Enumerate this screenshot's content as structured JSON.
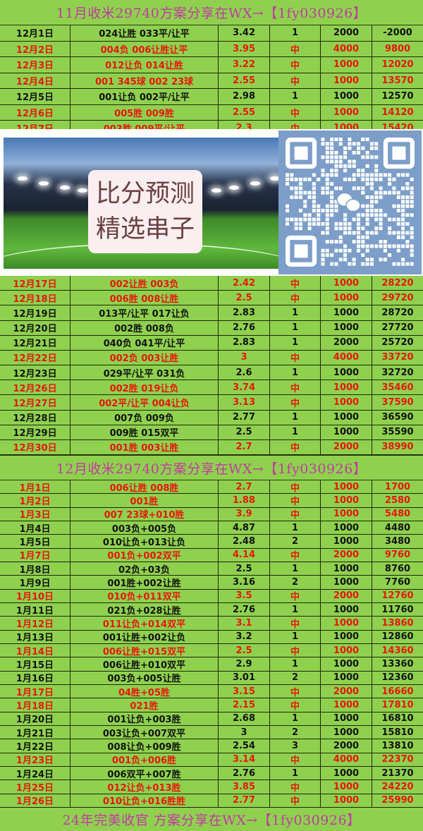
{
  "headers": {
    "top": "11月收米29740方案分享在WX→【1fy030926】",
    "middle": "12月收米29740方案分享在WX→【1fy030926】",
    "bottom": "24年完美收官 方案分享在WX→【1fy030926】"
  },
  "colors": {
    "background": "#8fd14f",
    "hit_text": "#e8160c",
    "header_text": "#c13ba0",
    "qr_background": "#7c9ec8"
  },
  "banner": {
    "line1": "比分预测",
    "line2": "精选串子",
    "qr_icon": "wechat-qr-code"
  },
  "section1": [
    [
      "12月1日",
      "024让胜 033平/让平",
      "3.42",
      "1",
      "2000",
      "-2000"
    ],
    [
      "12月2日",
      "004负 006让胜让平",
      "3.95",
      "中",
      "4000",
      "9800"
    ],
    [
      "12月3日",
      "012让负 014让胜",
      "3.22",
      "中",
      "1000",
      "12020"
    ],
    [
      "12月4日",
      "001 345球 002 23球",
      "2.55",
      "中",
      "1000",
      "13570"
    ],
    [
      "12月5日",
      "001让负 002平/让平",
      "2.98",
      "1",
      "1000",
      "12570"
    ],
    [
      "12月6日",
      "005胜 009胜",
      "2.55",
      "中",
      "1000",
      "14120"
    ],
    [
      "12月7日",
      "003胜 009平/让平",
      "2.3",
      "中",
      "1000",
      "15420"
    ]
  ],
  "section2": [
    [
      "12月17日",
      "002让胜 003负",
      "2.42",
      "中",
      "1000",
      "28220"
    ],
    [
      "12月18日",
      "006胜 008让胜",
      "2.5",
      "中",
      "1000",
      "29720"
    ],
    [
      "12月19日",
      "013平/让平 017让负",
      "2.83",
      "1",
      "1000",
      "28720"
    ],
    [
      "12月20日",
      "002胜 008负",
      "2.76",
      "1",
      "1000",
      "27720"
    ],
    [
      "12月21日",
      "040负 041平/让平",
      "2.83",
      "1",
      "2000",
      "25720"
    ],
    [
      "12月22日",
      "002负 003让胜",
      "3",
      "中",
      "4000",
      "33720"
    ],
    [
      "12月23日",
      "029平/让平 031负",
      "2.6",
      "1",
      "1000",
      "32720"
    ],
    [
      "12月26日",
      "002胜 019让负",
      "3.74",
      "中",
      "1000",
      "35460"
    ],
    [
      "12月27日",
      "002平/让平 004让负",
      "3.13",
      "中",
      "1000",
      "37590"
    ],
    [
      "12月28日",
      "007负 009负",
      "2.77",
      "1",
      "1000",
      "36590"
    ],
    [
      "12月29日",
      "009胜 015双平",
      "2.5",
      "1",
      "1000",
      "35590"
    ],
    [
      "12月30日",
      "001胜 003让胜",
      "2.7",
      "中",
      "2000",
      "38990"
    ]
  ],
  "section3": [
    [
      "1月1日",
      "006让胜 008胜",
      "2.7",
      "中",
      "1000",
      "1700"
    ],
    [
      "1月2日",
      "001胜",
      "1.88",
      "中",
      "1000",
      "2580"
    ],
    [
      "1月3日",
      "007 23球+010胜",
      "3.9",
      "中",
      "1000",
      "5480"
    ],
    [
      "1月4日",
      "003负+005负",
      "4.87",
      "1",
      "1000",
      "4480"
    ],
    [
      "1月5日",
      "010让负+013让负",
      "2.48",
      "2",
      "1000",
      "3480"
    ],
    [
      "1月7日",
      "001负+002双平",
      "4.14",
      "中",
      "2000",
      "9760"
    ],
    [
      "1月8日",
      "02负+03负",
      "2.5",
      "1",
      "1000",
      "8760"
    ],
    [
      "1月9日",
      "001胜+002让胜",
      "3.16",
      "2",
      "1000",
      "7760"
    ],
    [
      "1月10日",
      "010负+011双平",
      "3.5",
      "中",
      "2000",
      "12760"
    ],
    [
      "1月11日",
      "021负+028让胜",
      "2.76",
      "1",
      "1000",
      "11760"
    ],
    [
      "1月12日",
      "011让负+014双平",
      "3.1",
      "中",
      "1000",
      "13860"
    ],
    [
      "1月13日",
      "001让胜+002让负",
      "3.2",
      "1",
      "1000",
      "12860"
    ],
    [
      "1月14日",
      "006让胜+015双平",
      "2.5",
      "中",
      "1000",
      "14360"
    ],
    [
      "1月15日",
      "006让胜+010双平",
      "2.9",
      "1",
      "1000",
      "13360"
    ],
    [
      "1月16日",
      "003负+005让胜",
      "3.01",
      "2",
      "1000",
      "12360"
    ],
    [
      "1月17日",
      "04胜+05胜",
      "3.15",
      "中",
      "2000",
      "16660"
    ],
    [
      "1月18日",
      "021胜",
      "2.15",
      "中",
      "1000",
      "17810"
    ],
    [
      "1月20日",
      "001让负+003胜",
      "2.68",
      "1",
      "1000",
      "16810"
    ],
    [
      "1月21日",
      "003让负+007双平",
      "3",
      "2",
      "1000",
      "15810"
    ],
    [
      "1月22日",
      "008让负+009胜",
      "2.54",
      "3",
      "2000",
      "13810"
    ],
    [
      "1月23日",
      "001负+006胜",
      "3.14",
      "中",
      "4000",
      "22370"
    ],
    [
      "1月24日",
      "006双平+007胜",
      "2.76",
      "1",
      "1000",
      "21370"
    ],
    [
      "1月25日",
      "012让负+013胜",
      "3.85",
      "中",
      "1000",
      "24220"
    ],
    [
      "1月26日",
      "010让负+016胜胜",
      "2.77",
      "中",
      "1000",
      "25990"
    ]
  ]
}
